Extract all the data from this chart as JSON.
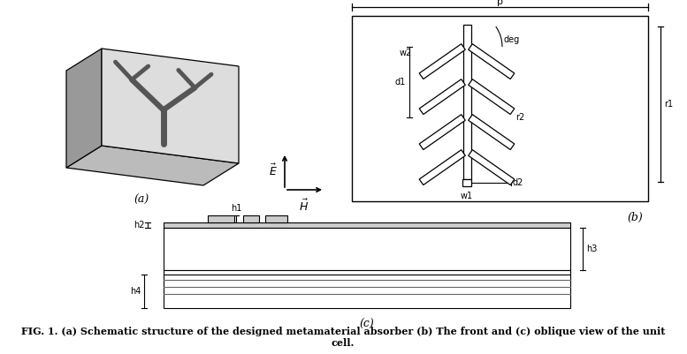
{
  "fig_width": 7.77,
  "fig_height": 4.01,
  "bg_color": "#ffffff",
  "line_color": "#000000",
  "dark_gray": "#555555",
  "mid_gray": "#888888",
  "light_gray": "#cccccc",
  "box_gray": "#d8d8d8",
  "caption_line1": "FIG. 1. (a) Schematic structure of the designed metamaterial absorber (b) The front and (c) oblique view of the unit",
  "caption_line2": "cell.",
  "label_a": "(a)",
  "label_b": "(b)",
  "label_c": "(c)"
}
